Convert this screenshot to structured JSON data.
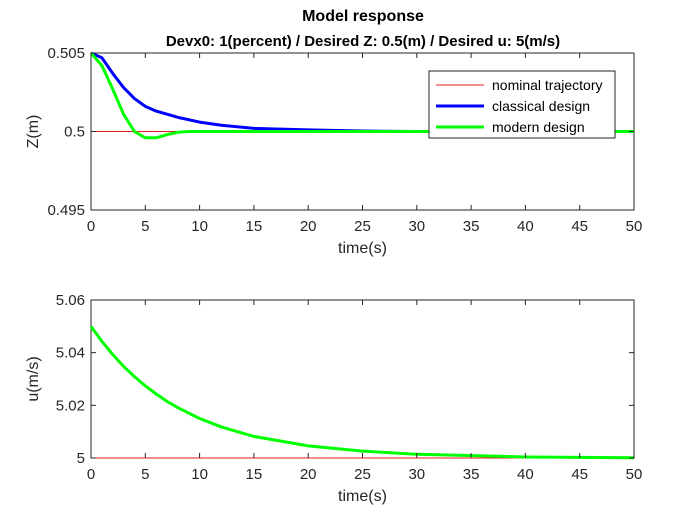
{
  "chart_data": [
    {
      "type": "line",
      "title": "Model response",
      "subtitle": "Devx0: 1(percent) / Desired Z: 0.5(m) / Desired u: 5(m/s)",
      "xlabel": "time(s)",
      "ylabel": "Z(m)",
      "xlim": [
        0,
        50
      ],
      "ylim": [
        0.495,
        0.505
      ],
      "xticks": [
        "0",
        "5",
        "10",
        "15",
        "20",
        "25",
        "30",
        "35",
        "40",
        "45",
        "50"
      ],
      "yticks": [
        "0.495",
        "0.5",
        "0.505"
      ],
      "grid": false,
      "legend_position": "top-right",
      "series": [
        {
          "name": "nominal trajectory",
          "color": "#e41a1c",
          "x": [
            0,
            50
          ],
          "y": [
            0.5,
            0.5
          ]
        },
        {
          "name": "classical design",
          "color": "#0000ff",
          "x": [
            0,
            1,
            2,
            3,
            4,
            5,
            6,
            7,
            8,
            10,
            12,
            15,
            20,
            25,
            30,
            40,
            50
          ],
          "y": [
            0.505,
            0.5047,
            0.5037,
            0.5028,
            0.5021,
            0.5016,
            0.5013,
            0.5011,
            0.5009,
            0.5006,
            0.5004,
            0.5002,
            0.5001,
            0.50003,
            0.5,
            0.5,
            0.5
          ]
        },
        {
          "name": "modern design",
          "color": "#00ff00",
          "x": [
            0,
            1,
            2,
            3,
            4,
            5,
            6,
            7,
            8,
            9,
            10,
            12,
            15,
            20,
            30,
            50
          ],
          "y": [
            0.505,
            0.5042,
            0.5027,
            0.5011,
            0.5,
            0.4996,
            0.4996,
            0.4998,
            0.49995,
            0.5,
            0.5,
            0.5,
            0.5,
            0.5,
            0.5,
            0.5
          ]
        }
      ]
    },
    {
      "type": "line",
      "xlabel": "time(s)",
      "ylabel": "u(m/s)",
      "xlim": [
        0,
        50
      ],
      "ylim": [
        5,
        5.06
      ],
      "xticks": [
        "0",
        "5",
        "10",
        "15",
        "20",
        "25",
        "30",
        "35",
        "40",
        "45",
        "50"
      ],
      "yticks": [
        "5",
        "5.02",
        "5.04",
        "5.06"
      ],
      "grid": false,
      "series": [
        {
          "color": "#e41a1c",
          "x": [
            0,
            50
          ],
          "y": [
            5,
            5
          ]
        },
        {
          "color": "#00ff00",
          "x": [
            0,
            1,
            2,
            3,
            4,
            5,
            6,
            7,
            8,
            10,
            12,
            15,
            20,
            25,
            30,
            40,
            50
          ],
          "y": [
            5.05,
            5.0443,
            5.0393,
            5.0348,
            5.0309,
            5.0274,
            5.0243,
            5.0215,
            5.0191,
            5.015,
            5.0118,
            5.0082,
            5.0046,
            5.0026,
            5.0014,
            5.0004,
            5.0001
          ]
        }
      ]
    }
  ]
}
